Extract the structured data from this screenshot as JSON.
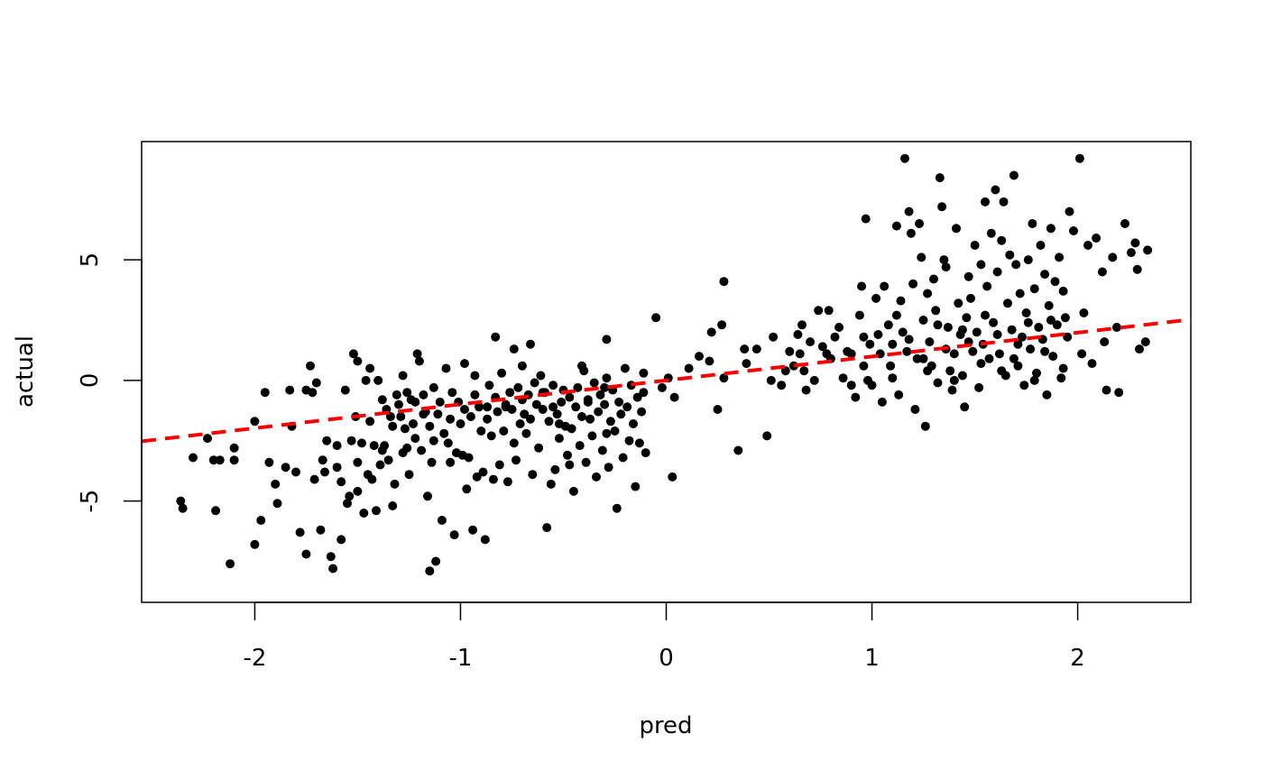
{
  "chart_data": {
    "type": "scatter",
    "title": "",
    "xlabel": "pred",
    "ylabel": "actual",
    "xlim": [
      -2.55,
      2.55
    ],
    "ylim": [
      -9.2,
      9.9
    ],
    "xticks": [
      -2,
      -1,
      0,
      1,
      2
    ],
    "xtick_labels": [
      "-2",
      "-1",
      "0",
      "1",
      "2"
    ],
    "yticks": [
      -5,
      0,
      5
    ],
    "ytick_labels": [
      "-5",
      "0",
      "5"
    ],
    "grid": false,
    "legend": "none",
    "point_color": "#000000",
    "trend_line": {
      "style": "dashed",
      "color": "#ff0000",
      "slope": 0.99,
      "intercept": 0.0
    },
    "points": [
      [
        -2.36,
        -5.0
      ],
      [
        -2.35,
        -5.3
      ],
      [
        -2.3,
        -3.2
      ],
      [
        -2.23,
        -2.4
      ],
      [
        -2.2,
        -3.3
      ],
      [
        -2.19,
        -5.4
      ],
      [
        -2.17,
        -3.3
      ],
      [
        -2.12,
        -7.6
      ],
      [
        -2.1,
        -2.8
      ],
      [
        -2.1,
        -3.3
      ],
      [
        -2.0,
        -1.7
      ],
      [
        -2.0,
        -6.8
      ],
      [
        -1.97,
        -5.8
      ],
      [
        -1.95,
        -0.5
      ],
      [
        -1.93,
        -3.4
      ],
      [
        -1.9,
        -4.3
      ],
      [
        -1.89,
        -5.1
      ],
      [
        -1.85,
        -3.6
      ],
      [
        -1.83,
        -0.4
      ],
      [
        -1.82,
        -1.9
      ],
      [
        -1.8,
        -3.8
      ],
      [
        -1.78,
        -6.3
      ],
      [
        -1.75,
        -0.4
      ],
      [
        -1.75,
        -7.2
      ],
      [
        -1.73,
        0.6
      ],
      [
        -1.72,
        -0.5
      ],
      [
        -1.71,
        -4.1
      ],
      [
        -1.7,
        -0.1
      ],
      [
        -1.68,
        -6.2
      ],
      [
        -1.67,
        -3.3
      ],
      [
        -1.66,
        -3.8
      ],
      [
        -1.65,
        -2.5
      ],
      [
        -1.63,
        -7.3
      ],
      [
        -1.62,
        -7.8
      ],
      [
        -1.6,
        -3.6
      ],
      [
        -1.6,
        -2.7
      ],
      [
        -1.58,
        -4.2
      ],
      [
        -1.58,
        -6.6
      ],
      [
        -1.56,
        -0.4
      ],
      [
        -1.55,
        -5.1
      ],
      [
        -1.54,
        -4.8
      ],
      [
        -1.53,
        -2.5
      ],
      [
        -1.51,
        -1.5
      ],
      [
        -1.5,
        -3.4
      ],
      [
        -1.5,
        -4.6
      ],
      [
        -1.48,
        -2.6
      ],
      [
        -1.47,
        -5.5
      ],
      [
        -1.46,
        0.0
      ],
      [
        -1.45,
        -3.9
      ],
      [
        -1.44,
        -1.7
      ],
      [
        -1.43,
        -4.1
      ],
      [
        -1.42,
        -2.7
      ],
      [
        -1.41,
        -5.4
      ],
      [
        -1.4,
        0.0
      ],
      [
        -1.39,
        -3.5
      ],
      [
        -1.38,
        -2.9
      ],
      [
        -1.37,
        -2.7
      ],
      [
        -1.36,
        -1.2
      ],
      [
        -1.35,
        -3.3
      ],
      [
        -1.34,
        -1.5
      ],
      [
        -1.33,
        -5.2
      ],
      [
        -1.32,
        -4.3
      ],
      [
        -1.31,
        -0.6
      ],
      [
        -1.3,
        -1.0
      ],
      [
        -1.29,
        -1.5
      ],
      [
        -1.28,
        -3.0
      ],
      [
        -1.28,
        0.2
      ],
      [
        -1.27,
        -2.0
      ],
      [
        -1.26,
        -2.8
      ],
      [
        -1.25,
        -3.9
      ],
      [
        -1.24,
        -0.8
      ],
      [
        -1.23,
        -1.8
      ],
      [
        -1.22,
        -2.4
      ],
      [
        -1.21,
        1.1
      ],
      [
        -1.2,
        0.8
      ],
      [
        -1.19,
        -2.9
      ],
      [
        -1.18,
        -0.6
      ],
      [
        -1.17,
        -1.3
      ],
      [
        -1.16,
        -4.8
      ],
      [
        -1.15,
        -1.9
      ],
      [
        -1.15,
        -7.9
      ],
      [
        -1.14,
        -3.4
      ],
      [
        -1.13,
        -2.5
      ],
      [
        -1.12,
        -7.5
      ],
      [
        -1.11,
        -1.4
      ],
      [
        -1.1,
        -0.9
      ],
      [
        -1.09,
        -5.8
      ],
      [
        -1.08,
        -2.2
      ],
      [
        -1.07,
        0.5
      ],
      [
        -1.06,
        -2.6
      ],
      [
        -1.05,
        -3.4
      ],
      [
        -1.04,
        -0.5
      ],
      [
        -1.03,
        -6.4
      ],
      [
        -1.02,
        -3.0
      ],
      [
        -1.01,
        -0.9
      ],
      [
        -1.0,
        -1.8
      ],
      [
        -0.99,
        -3.1
      ],
      [
        -0.98,
        -1.2
      ],
      [
        -0.97,
        -4.5
      ],
      [
        -0.96,
        -3.2
      ],
      [
        -0.95,
        -1.5
      ],
      [
        -0.94,
        -6.2
      ],
      [
        -0.93,
        -0.6
      ],
      [
        -0.92,
        -4.0
      ],
      [
        -0.91,
        -1.1
      ],
      [
        -0.9,
        -2.1
      ],
      [
        -0.89,
        -3.8
      ],
      [
        -0.88,
        -6.6
      ],
      [
        -0.87,
        -1.6
      ],
      [
        -0.86,
        -0.2
      ],
      [
        -0.85,
        -2.3
      ],
      [
        -0.84,
        -4.1
      ],
      [
        -0.83,
        -0.7
      ],
      [
        -0.82,
        -1.3
      ],
      [
        -0.81,
        -3.5
      ],
      [
        -0.8,
        0.3
      ],
      [
        -0.79,
        -2.1
      ],
      [
        -0.78,
        -1.0
      ],
      [
        -0.77,
        -4.2
      ],
      [
        -0.76,
        -0.5
      ],
      [
        -0.75,
        -1.2
      ],
      [
        -0.74,
        -2.6
      ],
      [
        -0.73,
        -3.3
      ],
      [
        -0.72,
        -0.3
      ],
      [
        -0.71,
        -1.8
      ],
      [
        -0.7,
        -0.8
      ],
      [
        -0.69,
        -1.4
      ],
      [
        -0.68,
        -2.2
      ],
      [
        -0.67,
        -0.6
      ],
      [
        -0.66,
        -1.6
      ],
      [
        -0.65,
        -3.9
      ],
      [
        -0.64,
        -0.1
      ],
      [
        -0.63,
        -1.0
      ],
      [
        -0.62,
        -2.8
      ],
      [
        -0.61,
        0.2
      ],
      [
        -0.6,
        -1.2
      ],
      [
        -0.59,
        -0.5
      ],
      [
        -0.58,
        -6.1
      ],
      [
        -0.57,
        -1.7
      ],
      [
        -0.56,
        -4.3
      ],
      [
        -0.55,
        -0.2
      ],
      [
        -0.54,
        -3.7
      ],
      [
        -0.53,
        -1.4
      ],
      [
        -0.52,
        -2.4
      ],
      [
        -0.51,
        -0.9
      ],
      [
        -0.5,
        -0.4
      ],
      [
        -0.49,
        -1.9
      ],
      [
        -0.48,
        -3.1
      ],
      [
        -0.47,
        -0.7
      ],
      [
        -0.46,
        -2.0
      ],
      [
        -0.45,
        -4.6
      ],
      [
        -0.44,
        -1.1
      ],
      [
        -0.43,
        -0.3
      ],
      [
        -0.42,
        -2.7
      ],
      [
        -0.41,
        -1.5
      ],
      [
        -0.4,
        0.4
      ],
      [
        -0.39,
        -3.4
      ],
      [
        -0.38,
        -0.8
      ],
      [
        -0.37,
        -1.6
      ],
      [
        -0.36,
        -2.3
      ],
      [
        -0.35,
        -0.1
      ],
      [
        -0.34,
        -4.0
      ],
      [
        -0.33,
        -1.3
      ],
      [
        -0.32,
        -0.6
      ],
      [
        -0.31,
        -2.9
      ],
      [
        -0.3,
        -1.0
      ],
      [
        -0.29,
        0.1
      ],
      [
        -0.28,
        -3.6
      ],
      [
        -0.27,
        -1.7
      ],
      [
        -0.26,
        -0.4
      ],
      [
        -0.25,
        -2.1
      ],
      [
        -0.24,
        -5.3
      ],
      [
        -0.23,
        -0.9
      ],
      [
        -0.22,
        -1.4
      ],
      [
        -0.21,
        -3.2
      ],
      [
        -0.2,
        0.5
      ],
      [
        -0.19,
        -1.1
      ],
      [
        -0.18,
        -2.5
      ],
      [
        -0.17,
        -0.2
      ],
      [
        -0.16,
        -1.8
      ],
      [
        -0.15,
        -4.4
      ],
      [
        -0.14,
        -0.7
      ],
      [
        -0.13,
        -2.6
      ],
      [
        -0.12,
        -1.3
      ],
      [
        -0.11,
        0.3
      ],
      [
        -0.1,
        -3.0
      ],
      [
        -1.52,
        1.1
      ],
      [
        -1.5,
        0.8
      ],
      [
        -1.44,
        0.5
      ],
      [
        -1.38,
        -0.8
      ],
      [
        -1.33,
        -1.9
      ],
      [
        -1.26,
        -0.5
      ],
      [
        -1.22,
        -0.9
      ],
      [
        -1.18,
        -1.4
      ],
      [
        -1.13,
        -0.3
      ],
      [
        -1.05,
        -1.6
      ],
      [
        -0.98,
        0.7
      ],
      [
        -0.93,
        0.2
      ],
      [
        -0.87,
        -1.1
      ],
      [
        -0.83,
        1.8
      ],
      [
        -0.78,
        -1.1
      ],
      [
        -0.74,
        1.3
      ],
      [
        -0.7,
        0.6
      ],
      [
        -0.66,
        1.5
      ],
      [
        -0.6,
        -0.5
      ],
      [
        -0.55,
        -1.1
      ],
      [
        -0.52,
        -1.8
      ],
      [
        -0.47,
        -3.5
      ],
      [
        -0.41,
        0.6
      ],
      [
        -0.38,
        -0.9
      ],
      [
        -0.3,
        -0.3
      ],
      [
        -0.29,
        1.7
      ],
      [
        -0.29,
        -2.2
      ],
      [
        -0.11,
        -0.5
      ],
      [
        -0.05,
        2.6
      ],
      [
        -0.02,
        -0.3
      ],
      [
        0.01,
        0.1
      ],
      [
        0.03,
        -4.0
      ],
      [
        0.04,
        -0.7
      ],
      [
        0.11,
        0.5
      ],
      [
        0.16,
        1.0
      ],
      [
        0.21,
        0.8
      ],
      [
        0.22,
        2.0
      ],
      [
        0.25,
        -1.2
      ],
      [
        0.27,
        2.3
      ],
      [
        0.28,
        4.1
      ],
      [
        0.28,
        0.1
      ],
      [
        0.35,
        -2.9
      ],
      [
        0.38,
        1.3
      ],
      [
        0.39,
        0.7
      ],
      [
        0.44,
        1.3
      ],
      [
        0.49,
        -2.3
      ],
      [
        0.51,
        0.0
      ],
      [
        0.52,
        1.8
      ],
      [
        0.56,
        -0.2
      ],
      [
        0.58,
        0.4
      ],
      [
        0.6,
        1.2
      ],
      [
        0.62,
        0.6
      ],
      [
        0.64,
        1.9
      ],
      [
        0.65,
        1.1
      ],
      [
        0.66,
        2.3
      ],
      [
        0.67,
        0.4
      ],
      [
        0.68,
        -0.4
      ],
      [
        0.7,
        1.6
      ],
      [
        0.72,
        0.0
      ],
      [
        0.74,
        2.9
      ],
      [
        0.76,
        1.4
      ],
      [
        0.78,
        1.1
      ],
      [
        0.79,
        2.9
      ],
      [
        0.8,
        0.9
      ],
      [
        0.82,
        1.8
      ],
      [
        0.84,
        2.2
      ],
      [
        0.86,
        0.1
      ],
      [
        0.88,
        1.2
      ],
      [
        0.9,
        1.1
      ],
      [
        0.92,
        -0.7
      ],
      [
        0.94,
        2.7
      ],
      [
        0.95,
        3.9
      ],
      [
        0.96,
        1.8
      ],
      [
        0.97,
        6.7
      ],
      [
        0.98,
        0.0
      ],
      [
        0.99,
        1.5
      ],
      [
        1.0,
        -0.2
      ],
      [
        1.02,
        3.4
      ],
      [
        1.04,
        1.1
      ],
      [
        1.05,
        -0.9
      ],
      [
        1.06,
        3.9
      ],
      [
        1.08,
        2.3
      ],
      [
        1.09,
        0.6
      ],
      [
        1.1,
        1.5
      ],
      [
        1.12,
        6.4
      ],
      [
        1.13,
        -0.6
      ],
      [
        1.14,
        3.3
      ],
      [
        1.15,
        2.0
      ],
      [
        1.16,
        9.2
      ],
      [
        1.17,
        1.2
      ],
      [
        1.18,
        7.0
      ],
      [
        1.19,
        6.1
      ],
      [
        1.2,
        4.0
      ],
      [
        1.21,
        -1.2
      ],
      [
        1.22,
        0.9
      ],
      [
        1.23,
        6.5
      ],
      [
        1.24,
        5.1
      ],
      [
        1.25,
        2.5
      ],
      [
        1.26,
        -1.9
      ],
      [
        1.27,
        3.6
      ],
      [
        1.28,
        1.6
      ],
      [
        1.29,
        0.6
      ],
      [
        1.3,
        4.2
      ],
      [
        1.31,
        2.9
      ],
      [
        1.32,
        -0.1
      ],
      [
        1.33,
        8.4
      ],
      [
        1.34,
        7.2
      ],
      [
        1.35,
        5.0
      ],
      [
        1.36,
        4.7
      ],
      [
        1.37,
        2.2
      ],
      [
        1.38,
        0.4
      ],
      [
        1.39,
        -0.4
      ],
      [
        1.4,
        1.1
      ],
      [
        1.41,
        6.3
      ],
      [
        1.42,
        3.2
      ],
      [
        1.43,
        1.9
      ],
      [
        1.44,
        0.2
      ],
      [
        1.45,
        -1.1
      ],
      [
        1.46,
        2.6
      ],
      [
        1.47,
        4.3
      ],
      [
        1.48,
        3.4
      ],
      [
        1.49,
        1.2
      ],
      [
        1.5,
        5.6
      ],
      [
        1.51,
        2.0
      ],
      [
        1.52,
        -0.3
      ],
      [
        1.53,
        4.8
      ],
      [
        1.54,
        1.5
      ],
      [
        1.55,
        7.4
      ],
      [
        1.56,
        3.9
      ],
      [
        1.57,
        0.9
      ],
      [
        1.58,
        6.1
      ],
      [
        1.59,
        2.4
      ],
      [
        1.6,
        7.9
      ],
      [
        1.61,
        4.5
      ],
      [
        1.62,
        1.1
      ],
      [
        1.63,
        5.8
      ],
      [
        1.64,
        7.4
      ],
      [
        1.65,
        0.2
      ],
      [
        1.66,
        3.2
      ],
      [
        1.67,
        5.2
      ],
      [
        1.68,
        2.1
      ],
      [
        1.69,
        8.5
      ],
      [
        1.7,
        4.8
      ],
      [
        1.71,
        0.6
      ],
      [
        1.72,
        3.6
      ],
      [
        1.73,
        1.8
      ],
      [
        1.74,
        -0.2
      ],
      [
        1.75,
        2.8
      ],
      [
        1.76,
        5.0
      ],
      [
        1.77,
        1.3
      ],
      [
        1.78,
        6.5
      ],
      [
        1.79,
        3.8
      ],
      [
        1.8,
        0.3
      ],
      [
        1.81,
        2.2
      ],
      [
        1.82,
        5.6
      ],
      [
        1.83,
        1.7
      ],
      [
        1.84,
        4.4
      ],
      [
        1.85,
        -0.6
      ],
      [
        1.86,
        3.1
      ],
      [
        1.87,
        6.3
      ],
      [
        1.88,
        1.0
      ],
      [
        1.89,
        4.1
      ],
      [
        1.9,
        2.3
      ],
      [
        1.91,
        5.1
      ],
      [
        1.92,
        0.1
      ],
      [
        1.93,
        3.7
      ],
      [
        1.94,
        2.6
      ],
      [
        1.96,
        7.0
      ],
      [
        1.98,
        6.2
      ],
      [
        2.01,
        9.2
      ],
      [
        2.03,
        2.8
      ],
      [
        2.05,
        5.6
      ],
      [
        2.07,
        0.7
      ],
      [
        2.09,
        5.9
      ],
      [
        2.12,
        4.5
      ],
      [
        2.13,
        1.6
      ],
      [
        2.14,
        -0.4
      ],
      [
        2.17,
        5.1
      ],
      [
        2.19,
        2.2
      ],
      [
        2.2,
        -0.5
      ],
      [
        2.23,
        6.5
      ],
      [
        2.26,
        5.3
      ],
      [
        2.28,
        5.7
      ],
      [
        2.29,
        4.6
      ],
      [
        2.3,
        1.3
      ],
      [
        2.33,
        1.6
      ],
      [
        2.34,
        5.4
      ],
      [
        1.12,
        2.7
      ],
      [
        1.27,
        0.4
      ],
      [
        1.36,
        1.3
      ],
      [
        1.44,
        2.1
      ],
      [
        1.53,
        0.7
      ],
      [
        1.61,
        1.9
      ],
      [
        1.69,
        0.9
      ],
      [
        1.76,
        2.4
      ],
      [
        1.84,
        1.2
      ],
      [
        1.93,
        0.5
      ],
      [
        2.02,
        1.1
      ],
      [
        0.9,
        -0.2
      ],
      [
        0.96,
        0.6
      ],
      [
        1.03,
        1.9
      ],
      [
        1.1,
        0.1
      ],
      [
        1.18,
        1.7
      ],
      [
        1.25,
        0.9
      ],
      [
        1.32,
        2.3
      ],
      [
        1.4,
        0.0
      ],
      [
        1.47,
        1.6
      ],
      [
        1.55,
        2.7
      ],
      [
        1.63,
        0.4
      ],
      [
        1.71,
        1.5
      ],
      [
        1.79,
        0.0
      ],
      [
        1.87,
        2.5
      ],
      [
        1.95,
        1.8
      ]
    ]
  }
}
